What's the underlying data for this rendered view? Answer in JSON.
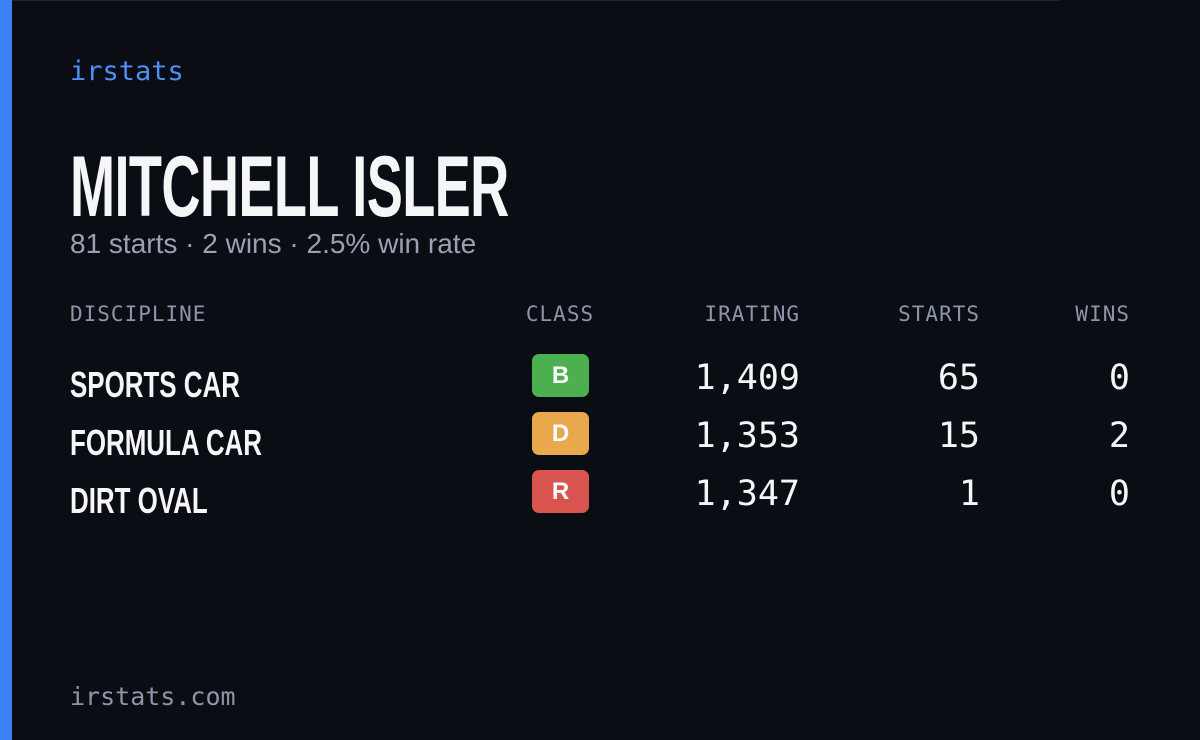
{
  "brand": "irstats",
  "driver": {
    "name": "MITCHELL ISLER",
    "summary": "81 starts · 2 wins · 2.5% win rate"
  },
  "table": {
    "headers": [
      "DISCIPLINE",
      "CLASS",
      "IRATING",
      "STARTS",
      "WINS"
    ],
    "rows": [
      {
        "discipline": "SPORTS CAR",
        "class": "B",
        "class_color": "#4caf50",
        "irating": "1,409",
        "starts": 65,
        "wins": 0
      },
      {
        "discipline": "FORMULA CAR",
        "class": "D",
        "class_color": "#e9a84c",
        "irating": "1,353",
        "starts": 15,
        "wins": 2
      },
      {
        "discipline": "DIRT OVAL",
        "class": "R",
        "class_color": "#d9534f",
        "irating": "1,347",
        "starts": 1,
        "wins": 0
      }
    ]
  },
  "footer": "irstats.com"
}
